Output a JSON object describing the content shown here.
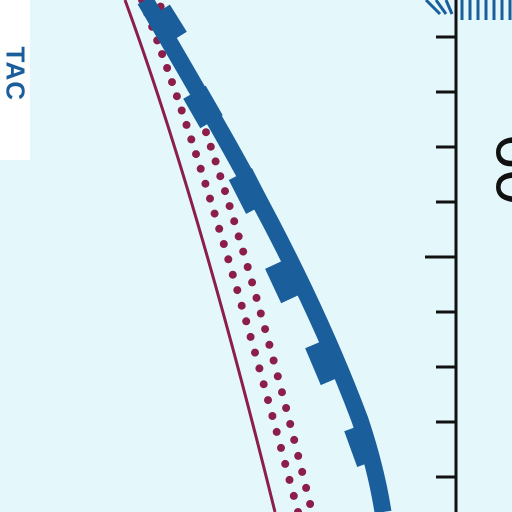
{
  "map": {
    "tac_label": "TAC",
    "latitude_label": "60°",
    "colors": {
      "background": "#e4f8fb",
      "boundary": "#1a5e9c",
      "route_line": "#8b1f4a",
      "route_dots": "#8b1f4a",
      "scale": "#111111",
      "tac_text": "#1a5e9c"
    }
  }
}
